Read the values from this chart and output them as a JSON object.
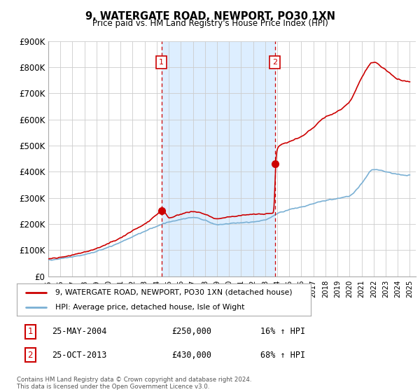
{
  "title": "9, WATERGATE ROAD, NEWPORT, PO30 1XN",
  "subtitle": "Price paid vs. HM Land Registry's House Price Index (HPI)",
  "ylim": [
    0,
    900000
  ],
  "yticks": [
    0,
    100000,
    200000,
    300000,
    400000,
    500000,
    600000,
    700000,
    800000,
    900000
  ],
  "ytick_labels": [
    "£0",
    "£100K",
    "£200K",
    "£300K",
    "£400K",
    "£500K",
    "£600K",
    "£700K",
    "£800K",
    "£900K"
  ],
  "red_line_color": "#cc0000",
  "blue_line_color": "#7ab0d4",
  "shade_color": "#ddeeff",
  "background_color": "#ffffff",
  "grid_color": "#cccccc",
  "sale1_x": 2004.4,
  "sale1_price": 250000,
  "sale2_x": 2013.8,
  "sale2_price": 430000,
  "marker_box_color": "#cc0000",
  "legend_red_label": "9, WATERGATE ROAD, NEWPORT, PO30 1XN (detached house)",
  "legend_blue_label": "HPI: Average price, detached house, Isle of Wight",
  "annotation1_date": "25-MAY-2004",
  "annotation1_price": "£250,000",
  "annotation1_hpi": "16% ↑ HPI",
  "annotation2_date": "25-OCT-2013",
  "annotation2_price": "£430,000",
  "annotation2_hpi": "68% ↑ HPI",
  "footer": "Contains HM Land Registry data © Crown copyright and database right 2024.\nThis data is licensed under the Open Government Licence v3.0.",
  "xlim_left": 1995.0,
  "xlim_right": 2025.5
}
